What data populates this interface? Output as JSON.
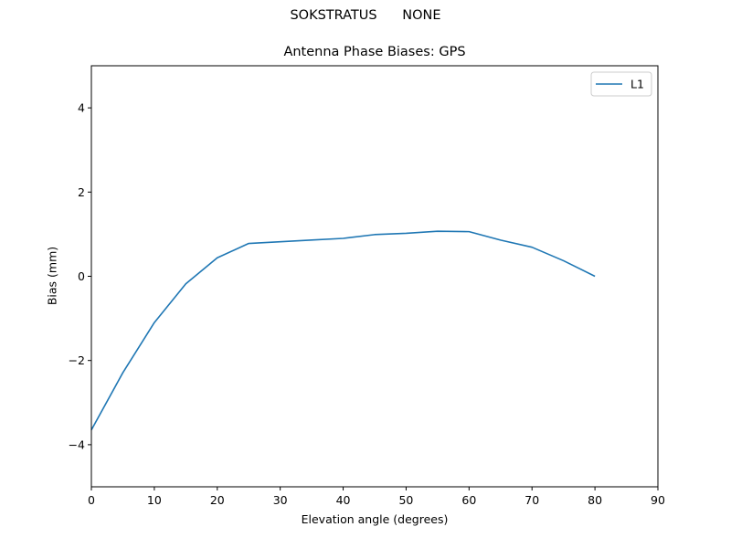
{
  "figure": {
    "suptitle": "SOKSTRATUS      NONE",
    "title": "Antenna Phase Biases: GPS",
    "xlabel": "Elevation angle (degrees)",
    "ylabel": "Bias (mm)"
  },
  "colors": {
    "line": "#1f77b4",
    "axes": "#000000",
    "legend_border": "#cccccc"
  },
  "chart_data": {
    "type": "line",
    "title": "Antenna Phase Biases: GPS",
    "suptitle": "SOKSTRATUS      NONE",
    "xlabel": "Elevation angle (degrees)",
    "ylabel": "Bias (mm)",
    "xlim": [
      0,
      90
    ],
    "ylim": [
      -5,
      5
    ],
    "xticks": [
      0,
      10,
      20,
      30,
      40,
      50,
      60,
      70,
      80,
      90
    ],
    "yticks": [
      -4,
      -2,
      0,
      2,
      4
    ],
    "ytick_labels": [
      "−4",
      "−2",
      "0",
      "2",
      "4"
    ],
    "grid": false,
    "legend_position": "upper right",
    "x": [
      0,
      5,
      10,
      15,
      20,
      25,
      30,
      35,
      40,
      45,
      50,
      55,
      60,
      65,
      70,
      75,
      80
    ],
    "series": [
      {
        "name": "L1",
        "color": "#1f77b4",
        "values": [
          -3.65,
          -2.29,
          -1.1,
          -0.18,
          0.44,
          0.78,
          0.82,
          0.86,
          0.9,
          0.99,
          1.02,
          1.07,
          1.06,
          0.86,
          0.69,
          0.37,
          0.0
        ]
      }
    ]
  }
}
